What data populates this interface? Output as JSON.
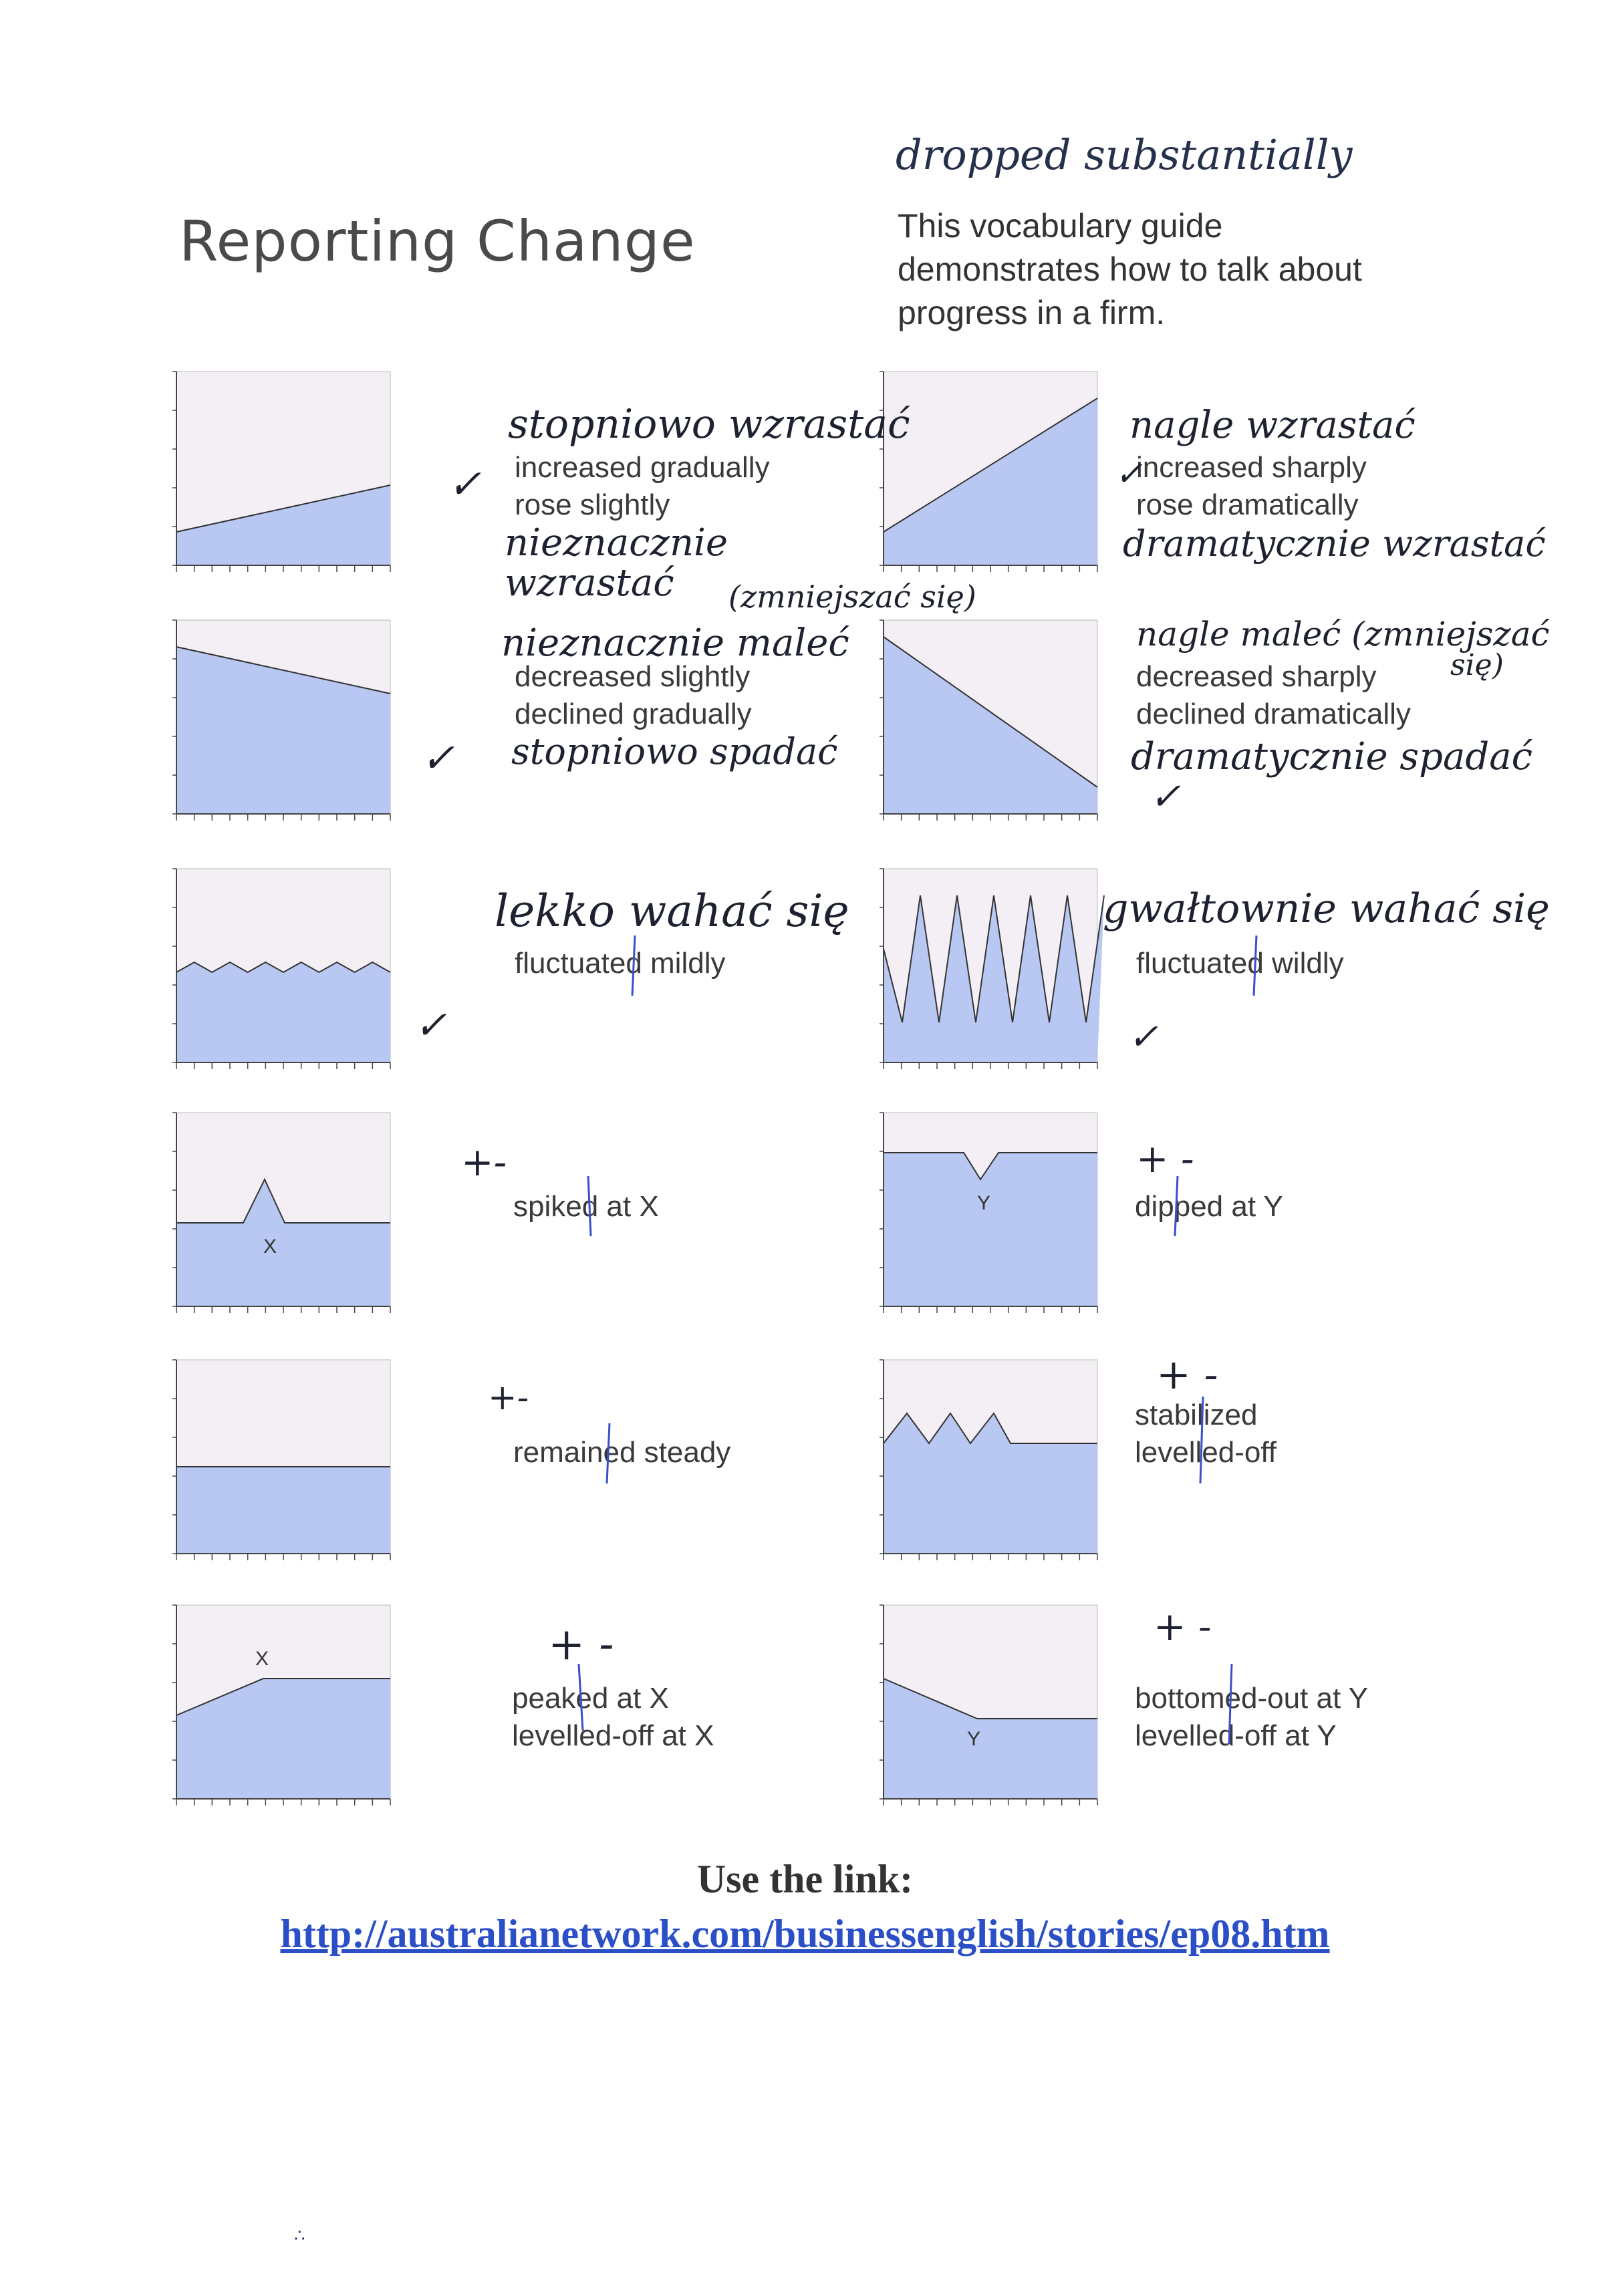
{
  "header": {
    "title": "Reporting Change",
    "handwritten_note": "dropped substantially",
    "intro_lines": [
      "This vocabulary guide",
      "demonstrates how to talk about",
      "progress in a firm."
    ]
  },
  "colors": {
    "fill": "#b9c8f2",
    "background": "#f3eff4",
    "line": "#333333",
    "annotation_ink": "#1e2230",
    "pen_mark": "#3b4fc8",
    "link": "#2b4fc7"
  },
  "rows": [
    {
      "left": {
        "shape": "gradual-rise",
        "lines": [
          "increased gradually",
          "rose slightly"
        ],
        "notes": [
          "stopniowo wzrastać",
          "nieznacznie",
          "wzrastać"
        ],
        "mark": "✓"
      },
      "right": {
        "shape": "sharp-rise",
        "lines": [
          "increased sharply",
          "rose dramatically"
        ],
        "notes": [
          "nagle wzrastać",
          "dramatycznie wzrastać"
        ],
        "mark": "✓"
      },
      "between": "(zmniejszać się)"
    },
    {
      "left": {
        "shape": "gradual-decline",
        "lines": [
          "decreased slightly",
          "declined gradually"
        ],
        "notes": [
          "nieznacznie maleć",
          "stopniowo spadać"
        ],
        "mark": "✓"
      },
      "right": {
        "shape": "sharp-decline",
        "lines": [
          "decreased sharply",
          "declined dramatically"
        ],
        "notes": [
          "nagle maleć (zmniejszać",
          "się)",
          "dramatycznie spadać"
        ],
        "mark": "✓"
      }
    },
    {
      "left": {
        "shape": "mild-fluctuation",
        "lines": [
          "fluctuated mildly"
        ],
        "notes": [
          "lekko wahać się"
        ],
        "mark": "✓"
      },
      "right": {
        "shape": "wild-fluctuation",
        "lines": [
          "fluctuated wildly"
        ],
        "notes": [
          "gwałtownie wahać się"
        ],
        "mark": "✓"
      }
    },
    {
      "left": {
        "shape": "spike",
        "point_label": "X",
        "lines": [
          "spiked at X"
        ],
        "notes": [
          "+-"
        ]
      },
      "right": {
        "shape": "dip",
        "point_label": "Y",
        "lines": [
          "dipped at Y"
        ],
        "notes": [
          "+ -"
        ]
      }
    },
    {
      "left": {
        "shape": "steady",
        "lines": [
          "remained steady"
        ],
        "notes": [
          "+-"
        ]
      },
      "right": {
        "shape": "stabilize",
        "lines": [
          "stabilized",
          "levelled-off"
        ],
        "notes": [
          "+ -"
        ]
      }
    },
    {
      "left": {
        "shape": "peak-level",
        "point_label": "X",
        "lines": [
          "peaked at X",
          "levelled-off at X"
        ],
        "notes": [
          "+ -"
        ]
      },
      "right": {
        "shape": "bottom-level",
        "point_label": "Y",
        "lines": [
          "bottomed-out at Y",
          "levelled-off at Y"
        ],
        "notes": [
          "+ -"
        ]
      }
    }
  ],
  "footer": {
    "lead": "Use the link:",
    "link": "http://australianetwork.com/businessenglish/stories/ep08.htm"
  }
}
